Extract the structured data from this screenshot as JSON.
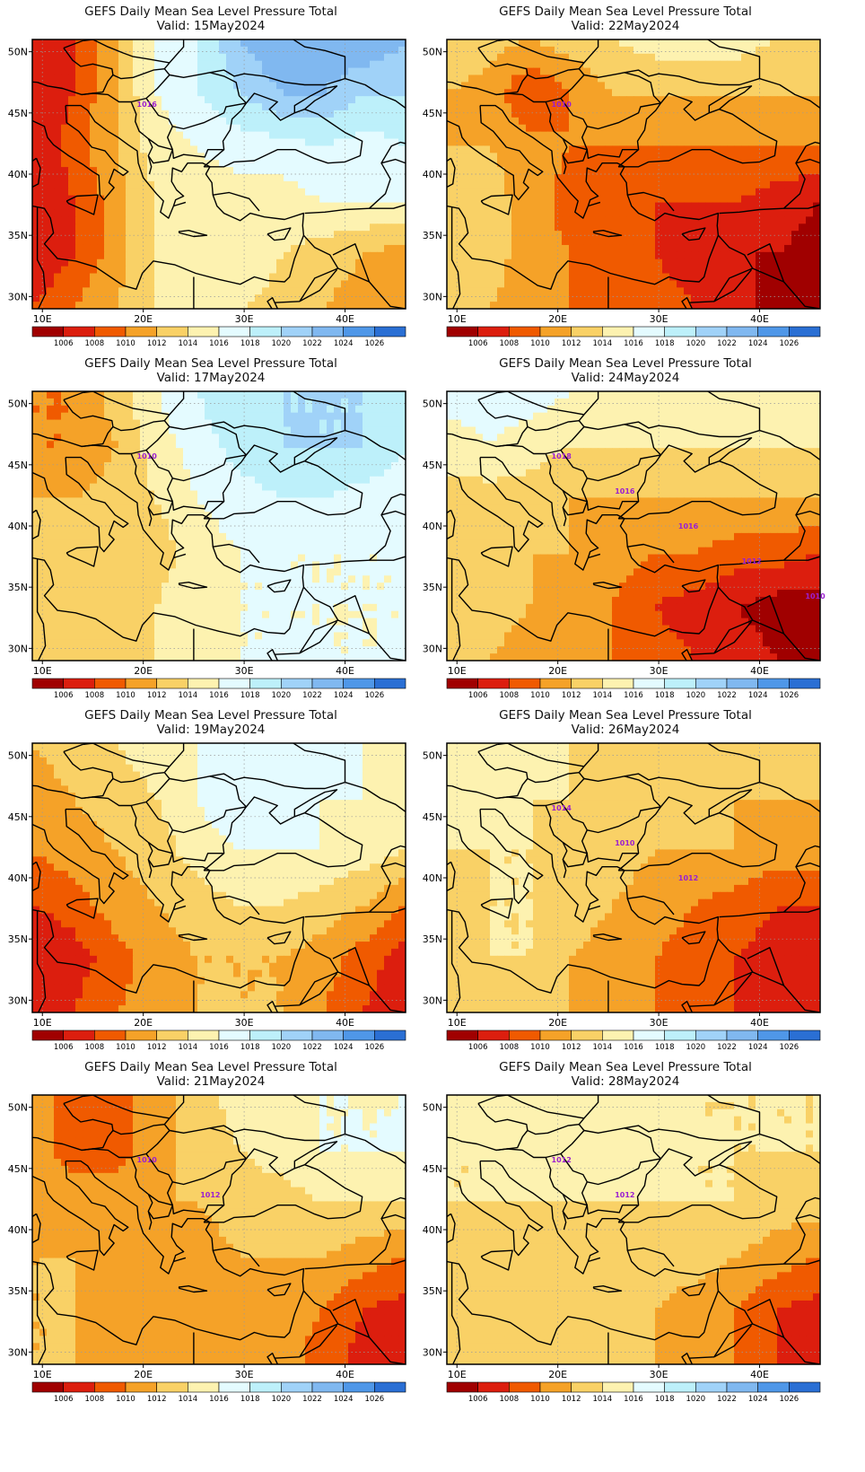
{
  "chart_data": [
    {
      "type": "heatmap",
      "title": "GEFS Daily Mean Sea Level Pressure Total",
      "subtitle": "Valid: 15May2024",
      "pressure_field": [
        [
          1006,
          1008,
          1012,
          1016,
          1018,
          1022,
          1024,
          1024,
          1024,
          1022
        ],
        [
          1006,
          1008,
          1012,
          1016,
          1018,
          1020,
          1022,
          1022,
          1020,
          1020
        ],
        [
          1006,
          1009,
          1012,
          1015,
          1016,
          1017,
          1017,
          1018,
          1017,
          1018
        ],
        [
          1006,
          1008,
          1011,
          1014,
          1015,
          1015,
          1015,
          1016,
          1016,
          1016
        ],
        [
          1006,
          1008,
          1011,
          1014,
          1016,
          1016,
          1014,
          1013,
          1012,
          1011
        ],
        [
          1008,
          1010,
          1012,
          1014,
          1015,
          1014,
          1013,
          1012,
          1011,
          1010
        ]
      ],
      "contour_labels": [
        "1016"
      ]
    },
    {
      "type": "heatmap",
      "title": "GEFS Daily Mean Sea Level Pressure Total",
      "subtitle": "Valid: 22May2024",
      "pressure_field": [
        [
          1014,
          1013,
          1012,
          1013,
          1014,
          1015,
          1015,
          1015,
          1014,
          1014
        ],
        [
          1012,
          1011,
          1008,
          1010,
          1012,
          1012,
          1012,
          1012,
          1012,
          1012
        ],
        [
          1012,
          1012,
          1011,
          1010,
          1010,
          1010,
          1010,
          1010,
          1010,
          1010
        ],
        [
          1013,
          1013,
          1011,
          1009,
          1008,
          1008,
          1008,
          1008,
          1007,
          1006
        ],
        [
          1014,
          1013,
          1011,
          1010,
          1009,
          1008,
          1007,
          1006,
          1006,
          1005
        ],
        [
          1013,
          1012,
          1011,
          1010,
          1010,
          1009,
          1008,
          1007,
          1005,
          1004
        ]
      ],
      "contour_labels": [
        "1010"
      ]
    },
    {
      "type": "heatmap",
      "title": "GEFS Daily Mean Sea Level Pressure Total",
      "subtitle": "Valid: 17May2024",
      "pressure_field": [
        [
          1010,
          1010,
          1013,
          1016,
          1018,
          1020,
          1020,
          1020,
          1020,
          1018
        ],
        [
          1010,
          1010,
          1012,
          1015,
          1017,
          1019,
          1020,
          1020,
          1020,
          1018
        ],
        [
          1012,
          1012,
          1013,
          1014,
          1016,
          1017,
          1018,
          1018,
          1017,
          1017
        ],
        [
          1013,
          1013,
          1012,
          1013,
          1015,
          1016,
          1016,
          1016,
          1016,
          1016
        ],
        [
          1013,
          1013,
          1013,
          1014,
          1016,
          1016,
          1016,
          1016,
          1016,
          1016
        ],
        [
          1012,
          1012,
          1013,
          1014,
          1015,
          1016,
          1016,
          1016,
          1016,
          1016
        ]
      ],
      "contour_labels": [
        "1010"
      ]
    },
    {
      "type": "heatmap",
      "title": "GEFS Daily Mean Sea Level Pressure Total",
      "subtitle": "Valid: 24May2024",
      "pressure_field": [
        [
          1017,
          1017,
          1017,
          1016,
          1015,
          1015,
          1016,
          1016,
          1016,
          1016
        ],
        [
          1015,
          1016,
          1015,
          1014,
          1014,
          1014,
          1014,
          1014,
          1014,
          1014
        ],
        [
          1013,
          1013,
          1013,
          1012,
          1012,
          1012,
          1012,
          1012,
          1012,
          1012
        ],
        [
          1013,
          1013,
          1012,
          1012,
          1011,
          1010,
          1010,
          1009,
          1009,
          1008
        ],
        [
          1013,
          1013,
          1012,
          1011,
          1010,
          1008,
          1007,
          1006,
          1005,
          1005
        ],
        [
          1012,
          1012,
          1011,
          1011,
          1010,
          1009,
          1008,
          1007,
          1006,
          1005
        ]
      ],
      "contour_labels": [
        "1018",
        "1016",
        "1016",
        "1012",
        "1010"
      ]
    },
    {
      "type": "heatmap",
      "title": "GEFS Daily Mean Sea Level Pressure Total",
      "subtitle": "Valid: 19May2024",
      "pressure_field": [
        [
          1012,
          1013,
          1014,
          1015,
          1016,
          1017,
          1018,
          1017,
          1016,
          1015
        ],
        [
          1011,
          1012,
          1013,
          1014,
          1016,
          1018,
          1018,
          1016,
          1016,
          1016
        ],
        [
          1010,
          1011,
          1012,
          1013,
          1015,
          1016,
          1016,
          1016,
          1015,
          1014
        ],
        [
          1008,
          1009,
          1011,
          1012,
          1013,
          1014,
          1014,
          1013,
          1012,
          1010
        ],
        [
          1006,
          1007,
          1009,
          1011,
          1012,
          1012,
          1012,
          1011,
          1009,
          1007
        ],
        [
          1006,
          1008,
          1010,
          1011,
          1012,
          1012,
          1012,
          1010,
          1008,
          1006
        ]
      ],
      "contour_labels": []
    },
    {
      "type": "heatmap",
      "title": "GEFS Daily Mean Sea Level Pressure Total",
      "subtitle": "Valid: 26May2024",
      "pressure_field": [
        [
          1016,
          1016,
          1015,
          1014,
          1014,
          1014,
          1014,
          1013,
          1013,
          1013
        ],
        [
          1015,
          1015,
          1014,
          1014,
          1013,
          1013,
          1013,
          1012,
          1012,
          1012
        ],
        [
          1014,
          1014,
          1014,
          1013,
          1013,
          1012,
          1012,
          1012,
          1011,
          1011
        ],
        [
          1013,
          1014,
          1014,
          1013,
          1012,
          1011,
          1010,
          1009,
          1008,
          1008
        ],
        [
          1013,
          1014,
          1014,
          1012,
          1011,
          1010,
          1009,
          1008,
          1007,
          1006
        ],
        [
          1013,
          1014,
          1013,
          1012,
          1011,
          1010,
          1009,
          1008,
          1007,
          1006
        ]
      ],
      "contour_labels": [
        "1014",
        "1010",
        "1012"
      ]
    },
    {
      "type": "heatmap",
      "title": "GEFS Daily Mean Sea Level Pressure Total",
      "subtitle": "Valid: 21May2024",
      "pressure_field": [
        [
          1011,
          1009,
          1009,
          1011,
          1013,
          1015,
          1016,
          1016,
          1016,
          1016
        ],
        [
          1011,
          1009,
          1009,
          1011,
          1013,
          1014,
          1015,
          1016,
          1016,
          1016
        ],
        [
          1012,
          1011,
          1011,
          1012,
          1012,
          1013,
          1013,
          1014,
          1014,
          1014
        ],
        [
          1012,
          1012,
          1011,
          1010,
          1011,
          1012,
          1012,
          1012,
          1011,
          1010
        ],
        [
          1012,
          1012,
          1011,
          1011,
          1011,
          1011,
          1011,
          1010,
          1008,
          1007
        ],
        [
          1012,
          1012,
          1011,
          1011,
          1011,
          1011,
          1011,
          1009,
          1007,
          1006
        ]
      ],
      "contour_labels": [
        "1010",
        "1012"
      ]
    },
    {
      "type": "heatmap",
      "title": "GEFS Daily Mean Sea Level Pressure Total",
      "subtitle": "Valid: 28May2024",
      "pressure_field": [
        [
          1015,
          1015,
          1016,
          1016,
          1016,
          1016,
          1014,
          1014,
          1014,
          1014
        ],
        [
          1014,
          1014,
          1015,
          1015,
          1015,
          1015,
          1014,
          1014,
          1014,
          1014
        ],
        [
          1014,
          1014,
          1014,
          1014,
          1014,
          1014,
          1014,
          1014,
          1013,
          1013
        ],
        [
          1013,
          1013,
          1013,
          1013,
          1013,
          1013,
          1013,
          1012,
          1011,
          1010
        ],
        [
          1013,
          1013,
          1013,
          1013,
          1013,
          1012,
          1011,
          1010,
          1008,
          1007
        ],
        [
          1012,
          1012,
          1012,
          1012,
          1012,
          1012,
          1011,
          1010,
          1008,
          1007
        ]
      ],
      "contour_labels": [
        "1012",
        "1012"
      ]
    }
  ],
  "axes": {
    "lon_range": [
      9,
      46
    ],
    "lat_range": [
      29,
      51
    ],
    "lon_ticks": [
      10,
      20,
      30,
      40
    ],
    "lon_tick_labels": [
      "10E",
      "20E",
      "30E",
      "40E"
    ],
    "lat_ticks": [
      30,
      35,
      40,
      45,
      50
    ],
    "lat_tick_labels": [
      "30N",
      "35N",
      "40N",
      "45N",
      "50N"
    ],
    "grid": "dotted"
  },
  "colorbar": {
    "labels": [
      "1006",
      "1008",
      "1010",
      "1012",
      "1014",
      "1016",
      "1018",
      "1020",
      "1022",
      "1024",
      "1026"
    ],
    "colors": [
      "#a00000",
      "#dc1e0e",
      "#f05a00",
      "#f5a228",
      "#f9d166",
      "#fdf2b0",
      "#e4fbff",
      "#bdf0fa",
      "#a0d2f8",
      "#80b8f0",
      "#4f97e8",
      "#2a6fd4"
    ]
  },
  "contour_color": "#9b1fd0"
}
